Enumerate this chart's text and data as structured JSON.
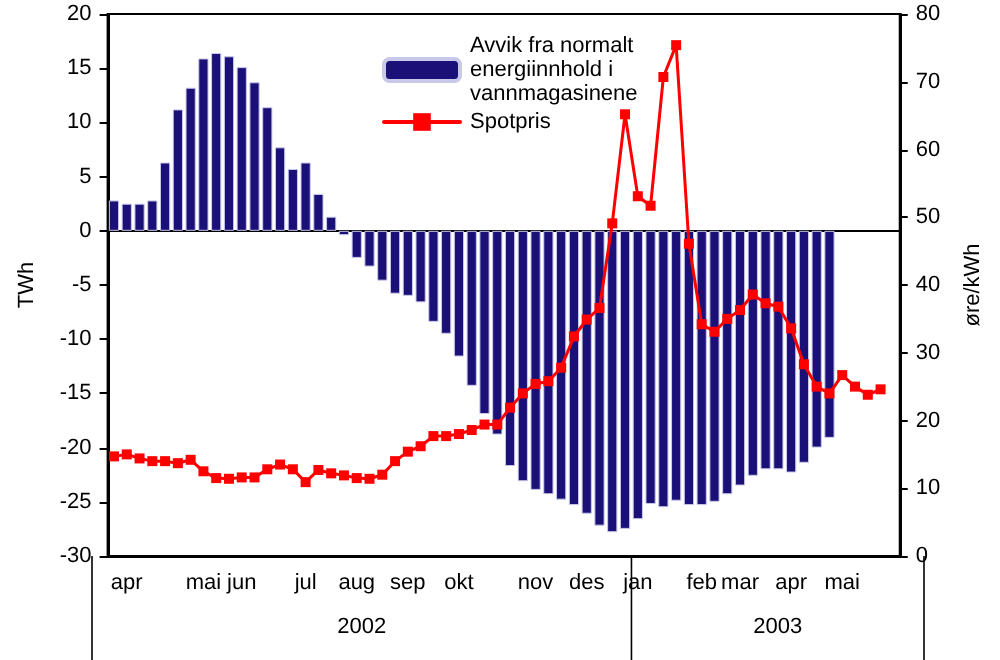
{
  "chart_data": {
    "type": "bar",
    "ylabel": "TWh",
    "y2label": "øre/kWh",
    "categories": [
      null,
      "apr",
      null,
      null,
      null,
      null,
      null,
      "mai",
      null,
      null,
      "jun",
      null,
      null,
      null,
      null,
      "jul",
      null,
      null,
      null,
      "aug",
      null,
      null,
      null,
      "sep",
      null,
      null,
      null,
      "okt",
      null,
      null,
      null,
      null,
      null,
      "nov",
      null,
      null,
      null,
      "des",
      null,
      null,
      null,
      "jan",
      null,
      null,
      null,
      null,
      "feb",
      null,
      null,
      "mar",
      null,
      null,
      null,
      "apr",
      null,
      null,
      null,
      "mai",
      null,
      null,
      null,
      null
    ],
    "series": [
      {
        "name": "Avvik fra normalt energiinnhold i vannmagasinene",
        "color": "#1a1078",
        "values": [
          2.8,
          2.5,
          2.5,
          2.8,
          6.3,
          11.2,
          13.2,
          15.9,
          16.4,
          16.1,
          15.1,
          13.7,
          11.4,
          7.7,
          5.7,
          6.3,
          3.4,
          1.3,
          -0.4,
          -2.5,
          -3.3,
          -4.6,
          -5.8,
          -6.0,
          -6.6,
          -8.4,
          -9.5,
          -11.6,
          -14.3,
          -16.9,
          -18.8,
          -21.7,
          -23.1,
          -23.9,
          -24.3,
          -24.8,
          -25.3,
          -26.1,
          -27.2,
          -27.8,
          -27.5,
          -26.6,
          -25.2,
          -25.5,
          -24.9,
          -25.3,
          -25.3,
          -25.0,
          -24.3,
          -23.5,
          -22.6,
          -22.0,
          -22.0,
          -22.3,
          -21.4,
          -20.0,
          -19.1,
          null,
          null,
          null,
          null,
          null
        ]
      },
      {
        "name": "Spotpris",
        "type": "line",
        "axis": "y2",
        "color": "#ff0000",
        "marker": "square",
        "values": [
          14.7,
          15.0,
          14.4,
          14.0,
          14.0,
          13.7,
          14.2,
          12.5,
          11.5,
          11.4,
          11.6,
          11.6,
          12.8,
          13.5,
          12.8,
          10.9,
          12.7,
          12.2,
          11.9,
          11.5,
          11.4,
          12.0,
          14.0,
          15.4,
          16.2,
          17.7,
          17.7,
          18.0,
          18.6,
          19.4,
          19.4,
          21.9,
          24.0,
          25.4,
          25.8,
          27.8,
          32.4,
          34.9,
          36.6,
          49.1,
          65.2,
          53.1,
          51.7,
          70.7,
          75.4,
          46.1,
          34.2,
          33.1,
          35.0,
          36.3,
          38.6,
          37.3,
          36.8,
          33.6,
          28.3,
          25.0,
          24.0,
          26.7,
          25.0,
          23.8,
          24.6,
          null
        ]
      }
    ],
    "ylim": [
      -30,
      20
    ],
    "yticks": [
      -30,
      -25,
      -20,
      -15,
      -10,
      -5,
      0,
      5,
      10,
      15,
      20
    ],
    "y2lim": [
      0,
      80
    ],
    "y2ticks": [
      0,
      10,
      20,
      30,
      40,
      50,
      60,
      70,
      80
    ],
    "annotations": [
      "2002",
      "2003"
    ],
    "legend": "top"
  }
}
